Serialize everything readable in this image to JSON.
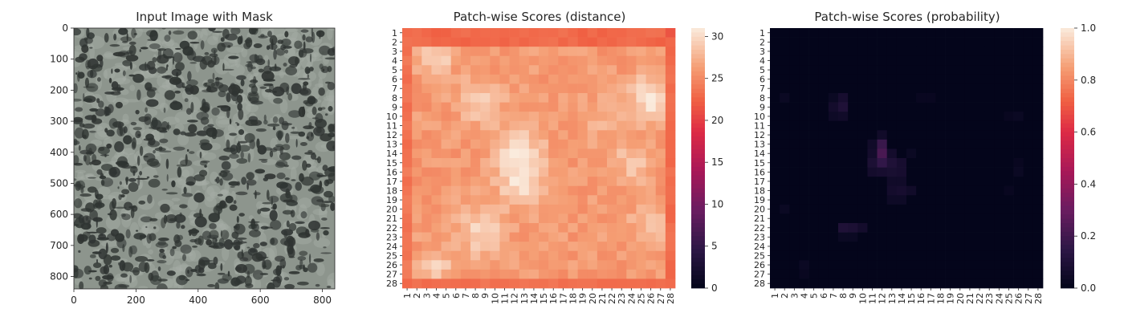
{
  "chart_data": [
    {
      "type": "image",
      "title": "Input Image with Mask",
      "x_ticks": [
        "0",
        "200",
        "400",
        "600",
        "800"
      ],
      "y_ticks": [
        "0",
        "100",
        "200",
        "300",
        "400",
        "500",
        "600",
        "700",
        "800"
      ],
      "xlim": [
        0,
        840
      ],
      "ylim": [
        840,
        0
      ],
      "texture": "grey granite-like speckled surface",
      "colors": {
        "base": "#8d958d",
        "light": "#a7aea6",
        "dark": "#2f3432"
      }
    },
    {
      "type": "heatmap",
      "title": "Patch-wise Scores (distance)",
      "x_labels": [
        "1",
        "2",
        "3",
        "4",
        "5",
        "6",
        "7",
        "8",
        "9",
        "10",
        "11",
        "12",
        "13",
        "14",
        "15",
        "16",
        "17",
        "18",
        "19",
        "20",
        "21",
        "22",
        "23",
        "24",
        "25",
        "26",
        "27",
        "28"
      ],
      "y_labels": [
        "1",
        "2",
        "3",
        "4",
        "5",
        "6",
        "7",
        "8",
        "9",
        "10",
        "11",
        "12",
        "13",
        "14",
        "15",
        "16",
        "17",
        "18",
        "19",
        "20",
        "21",
        "22",
        "23",
        "24",
        "25",
        "26",
        "27",
        "28"
      ],
      "colorbar": {
        "min": 0,
        "max": 31,
        "ticks": [
          "0",
          "5",
          "10",
          "15",
          "20",
          "25",
          "30"
        ]
      },
      "colormap": "rocket",
      "value_summary": "border rows/cols ~22-23; interior mostly ~26-28; bright spots ~30 around (x 4,y 3-4), (x 8-9,y 8-9), (x 12-13,y 13-18), (x 26,y 6-10), (x 8-9,y 22-23), (x 4,y 26)"
    },
    {
      "type": "heatmap",
      "title": "Patch-wise Scores (probability)",
      "x_labels": [
        "1",
        "2",
        "3",
        "4",
        "5",
        "6",
        "7",
        "8",
        "9",
        "10",
        "11",
        "12",
        "13",
        "14",
        "15",
        "16",
        "17",
        "18",
        "19",
        "20",
        "21",
        "22",
        "23",
        "24",
        "25",
        "26",
        "27",
        "28"
      ],
      "y_labels": [
        "1",
        "2",
        "3",
        "4",
        "5",
        "6",
        "7",
        "8",
        "9",
        "10",
        "11",
        "12",
        "13",
        "14",
        "15",
        "16",
        "17",
        "18",
        "19",
        "20",
        "21",
        "22",
        "23",
        "24",
        "25",
        "26",
        "27",
        "28"
      ],
      "colorbar": {
        "min": 0,
        "max": 1,
        "ticks": [
          "0.0",
          "0.2",
          "0.4",
          "0.6",
          "0.8",
          "1.0"
        ]
      },
      "colormap": "rocket",
      "cells": [
        {
          "x": 12,
          "y": 13,
          "v": 0.18
        },
        {
          "x": 12,
          "y": 14,
          "v": 0.22
        },
        {
          "x": 12,
          "y": 15,
          "v": 0.16
        },
        {
          "x": 11,
          "y": 15,
          "v": 0.09
        },
        {
          "x": 13,
          "y": 15,
          "v": 0.1
        },
        {
          "x": 13,
          "y": 16,
          "v": 0.08
        },
        {
          "x": 14,
          "y": 15,
          "v": 0.07
        },
        {
          "x": 14,
          "y": 16,
          "v": 0.07
        },
        {
          "x": 11,
          "y": 16,
          "v": 0.06
        },
        {
          "x": 12,
          "y": 16,
          "v": 0.07
        },
        {
          "x": 11,
          "y": 13,
          "v": 0.05
        },
        {
          "x": 11,
          "y": 14,
          "v": 0.06
        },
        {
          "x": 13,
          "y": 14,
          "v": 0.06
        },
        {
          "x": 12,
          "y": 12,
          "v": 0.05
        },
        {
          "x": 13,
          "y": 17,
          "v": 0.05
        },
        {
          "x": 14,
          "y": 17,
          "v": 0.05
        },
        {
          "x": 13,
          "y": 18,
          "v": 0.06
        },
        {
          "x": 14,
          "y": 18,
          "v": 0.07
        },
        {
          "x": 15,
          "y": 18,
          "v": 0.05
        },
        {
          "x": 13,
          "y": 19,
          "v": 0.04
        },
        {
          "x": 14,
          "y": 19,
          "v": 0.04
        },
        {
          "x": 8,
          "y": 9,
          "v": 0.1
        },
        {
          "x": 8,
          "y": 8,
          "v": 0.07
        },
        {
          "x": 7,
          "y": 9,
          "v": 0.06
        },
        {
          "x": 8,
          "y": 10,
          "v": 0.05
        },
        {
          "x": 7,
          "y": 10,
          "v": 0.04
        },
        {
          "x": 7,
          "y": 8,
          "v": 0.03
        },
        {
          "x": 8,
          "y": 22,
          "v": 0.1
        },
        {
          "x": 9,
          "y": 22,
          "v": 0.09
        },
        {
          "x": 10,
          "y": 22,
          "v": 0.06
        },
        {
          "x": 8,
          "y": 23,
          "v": 0.03
        },
        {
          "x": 9,
          "y": 23,
          "v": 0.03
        },
        {
          "x": 2,
          "y": 8,
          "v": 0.03
        },
        {
          "x": 2,
          "y": 20,
          "v": 0.03
        },
        {
          "x": 4,
          "y": 26,
          "v": 0.03
        },
        {
          "x": 4,
          "y": 27,
          "v": 0.02
        },
        {
          "x": 16,
          "y": 8,
          "v": 0.02
        },
        {
          "x": 17,
          "y": 8,
          "v": 0.02
        },
        {
          "x": 26,
          "y": 10,
          "v": 0.03
        },
        {
          "x": 26,
          "y": 16,
          "v": 0.03
        },
        {
          "x": 25,
          "y": 18,
          "v": 0.02
        },
        {
          "x": 26,
          "y": 15,
          "v": 0.02
        },
        {
          "x": 25,
          "y": 10,
          "v": 0.02
        },
        {
          "x": 15,
          "y": 14,
          "v": 0.03
        }
      ]
    }
  ]
}
